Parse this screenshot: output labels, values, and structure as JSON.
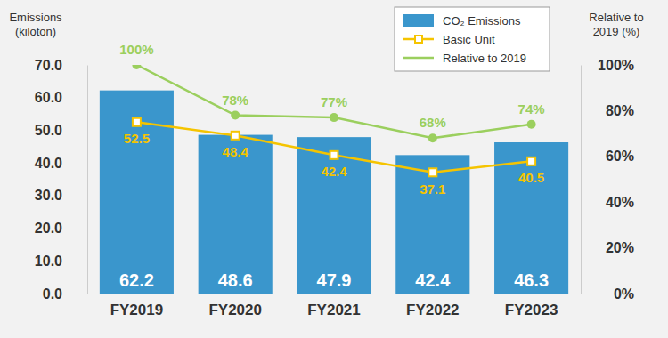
{
  "chart_data": {
    "type": "bar",
    "categories": [
      "FY2019",
      "FY2020",
      "FY2021",
      "FY2022",
      "FY2023"
    ],
    "series": [
      {
        "name": "CO₂ Emissions",
        "type": "bar",
        "color": "#3a96cc",
        "values": [
          62.2,
          48.6,
          47.9,
          42.4,
          46.3
        ]
      },
      {
        "name": "Basic Unit",
        "type": "line",
        "color": "#f5c400",
        "marker": "square",
        "values": [
          52.5,
          48.4,
          42.4,
          37.1,
          40.5
        ]
      },
      {
        "name": "Relative to 2019",
        "type": "line",
        "color": "#9bcf5e",
        "marker": "circle",
        "axis": "y2",
        "values": [
          100,
          78,
          77,
          68,
          74
        ],
        "value_labels": [
          "100%",
          "78%",
          "77%",
          "68%",
          "74%"
        ]
      }
    ],
    "ylabel": [
      "Emissions",
      "(kiloton)"
    ],
    "y2label": [
      "Relative to",
      "2019 (%)"
    ],
    "ylim": [
      0,
      70
    ],
    "yticks": [
      {
        "value": 0,
        "label": "0.0"
      },
      {
        "value": 10,
        "label": "10.0"
      },
      {
        "value": 20,
        "label": "20.0"
      },
      {
        "value": 30,
        "label": "30.0"
      },
      {
        "value": 40,
        "label": "40.0"
      },
      {
        "value": 50,
        "label": "50.0"
      },
      {
        "value": 60,
        "label": "60.0"
      },
      {
        "value": 70,
        "label": "70.0"
      }
    ],
    "y2lim": [
      0,
      100
    ],
    "y2ticks": [
      {
        "value": 0,
        "label": "0%"
      },
      {
        "value": 20,
        "label": "20%"
      },
      {
        "value": 40,
        "label": "40%"
      },
      {
        "value": 60,
        "label": "60%"
      },
      {
        "value": 80,
        "label": "80%"
      },
      {
        "value": 100,
        "label": "100%"
      }
    ],
    "data_labels": true,
    "legend": "upper right",
    "grid": false
  }
}
